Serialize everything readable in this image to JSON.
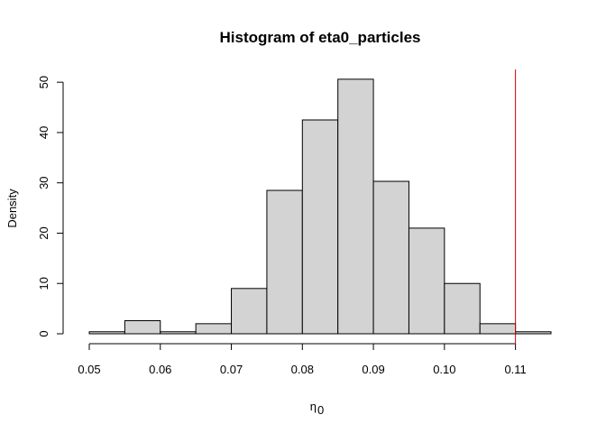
{
  "chart_data": {
    "type": "bar",
    "title": "Histogram of eta0_particles",
    "xlabel_main": "η",
    "xlabel_sub": "0",
    "ylabel": "Density",
    "xlim": [
      0.05,
      0.115
    ],
    "ylim": [
      0,
      52
    ],
    "bins": [
      {
        "x0": 0.05,
        "x1": 0.055,
        "density": 0.4
      },
      {
        "x0": 0.055,
        "x1": 0.06,
        "density": 2.6
      },
      {
        "x0": 0.06,
        "x1": 0.065,
        "density": 0.4
      },
      {
        "x0": 0.065,
        "x1": 0.07,
        "density": 2.0
      },
      {
        "x0": 0.07,
        "x1": 0.075,
        "density": 9.0
      },
      {
        "x0": 0.075,
        "x1": 0.08,
        "density": 28.5
      },
      {
        "x0": 0.08,
        "x1": 0.085,
        "density": 42.5
      },
      {
        "x0": 0.085,
        "x1": 0.09,
        "density": 50.6
      },
      {
        "x0": 0.09,
        "x1": 0.095,
        "density": 30.3
      },
      {
        "x0": 0.095,
        "x1": 0.1,
        "density": 21.0
      },
      {
        "x0": 0.1,
        "x1": 0.105,
        "density": 10.0
      },
      {
        "x0": 0.105,
        "x1": 0.11,
        "density": 2.0
      },
      {
        "x0": 0.11,
        "x1": 0.115,
        "density": 0.4
      }
    ],
    "x_ticks": [
      {
        "value": 0.05,
        "label": "0.05"
      },
      {
        "value": 0.06,
        "label": "0.06"
      },
      {
        "value": 0.07,
        "label": "0.07"
      },
      {
        "value": 0.08,
        "label": "0.08"
      },
      {
        "value": 0.09,
        "label": "0.09"
      },
      {
        "value": 0.1,
        "label": "0.10"
      },
      {
        "value": 0.11,
        "label": "0.11"
      }
    ],
    "y_ticks": [
      {
        "value": 0,
        "label": "0"
      },
      {
        "value": 10,
        "label": "10"
      },
      {
        "value": 20,
        "label": "20"
      },
      {
        "value": 30,
        "label": "30"
      },
      {
        "value": 40,
        "label": "40"
      },
      {
        "value": 50,
        "label": "50"
      }
    ],
    "reference_line": {
      "x": 0.11,
      "color": "#cc0000"
    },
    "bar_fill": "#d3d3d3",
    "grid": false
  }
}
